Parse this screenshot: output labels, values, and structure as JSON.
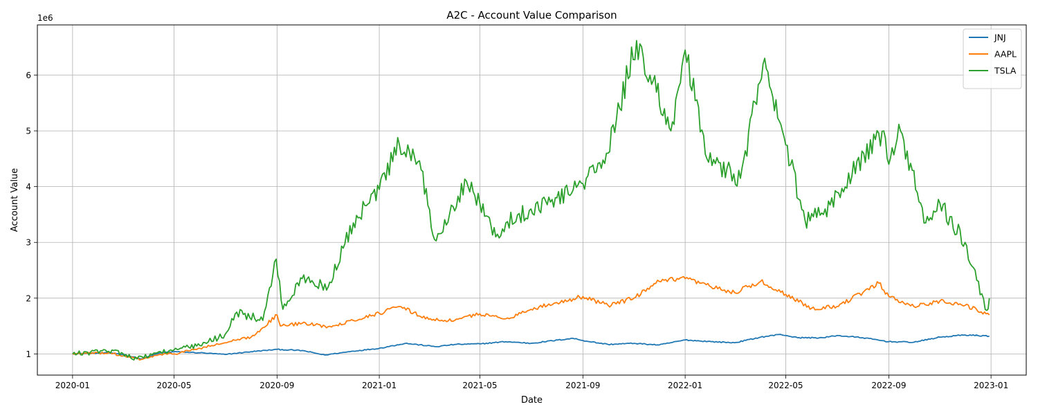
{
  "colors": {
    "JNJ": "#1f77b4",
    "AAPL": "#ff7f0e",
    "TSLA": "#2ca02c",
    "grid": "#b0b0b0"
  },
  "chart_data": {
    "type": "line",
    "title": "A2C - Account Value Comparison",
    "xlabel": "Date",
    "ylabel": "Account Value",
    "y_scale_label": "1e6",
    "xlim": [
      "2019-11-20",
      "2023-02-12"
    ],
    "ylim": [
      0.62,
      6.9
    ],
    "x_ticks": [
      "2020-01-01",
      "2020-05-01",
      "2020-09-01",
      "2021-01-01",
      "2021-05-01",
      "2021-09-01",
      "2022-01-01",
      "2022-05-01",
      "2022-09-01",
      "2023-01-01"
    ],
    "x_tick_labels": [
      "2020-01",
      "2020-05",
      "2020-09",
      "2021-01",
      "2021-05",
      "2021-09",
      "2022-01",
      "2022-05",
      "2022-09",
      "2023-01"
    ],
    "y_ticks": [
      1,
      2,
      3,
      4,
      5,
      6
    ],
    "y_tick_labels": [
      "1",
      "2",
      "3",
      "4",
      "5",
      "6"
    ],
    "grid": true,
    "legend_position": "top-right",
    "series": [
      {
        "name": "JNJ",
        "points": [
          [
            "2020-01-01",
            1.0
          ],
          [
            "2020-02-15",
            1.02
          ],
          [
            "2020-03-01",
            0.99
          ],
          [
            "2020-03-23",
            0.91
          ],
          [
            "2020-04-15",
            1.02
          ],
          [
            "2020-05-01",
            1.04
          ],
          [
            "2020-06-01",
            1.02
          ],
          [
            "2020-07-01",
            0.99
          ],
          [
            "2020-08-01",
            1.04
          ],
          [
            "2020-09-01",
            1.08
          ],
          [
            "2020-10-01",
            1.06
          ],
          [
            "2020-10-28",
            0.98
          ],
          [
            "2020-12-01",
            1.05
          ],
          [
            "2021-01-01",
            1.1
          ],
          [
            "2021-02-01",
            1.19
          ],
          [
            "2021-03-10",
            1.13
          ],
          [
            "2021-04-01",
            1.17
          ],
          [
            "2021-05-01",
            1.18
          ],
          [
            "2021-06-01",
            1.22
          ],
          [
            "2021-07-01",
            1.19
          ],
          [
            "2021-08-20",
            1.28
          ],
          [
            "2021-09-01",
            1.24
          ],
          [
            "2021-10-01",
            1.17
          ],
          [
            "2021-11-01",
            1.19
          ],
          [
            "2021-12-01",
            1.16
          ],
          [
            "2022-01-01",
            1.25
          ],
          [
            "2022-02-01",
            1.22
          ],
          [
            "2022-03-01",
            1.2
          ],
          [
            "2022-04-01",
            1.3
          ],
          [
            "2022-04-25",
            1.35
          ],
          [
            "2022-05-15",
            1.29
          ],
          [
            "2022-06-15",
            1.29
          ],
          [
            "2022-07-01",
            1.33
          ],
          [
            "2022-08-01",
            1.29
          ],
          [
            "2022-09-01",
            1.22
          ],
          [
            "2022-10-01",
            1.21
          ],
          [
            "2022-11-01",
            1.3
          ],
          [
            "2022-12-01",
            1.34
          ],
          [
            "2022-12-30",
            1.32
          ]
        ]
      },
      {
        "name": "AAPL",
        "points": [
          [
            "2020-01-01",
            1.0
          ],
          [
            "2020-02-15",
            1.02
          ],
          [
            "2020-03-01",
            0.96
          ],
          [
            "2020-03-23",
            0.9
          ],
          [
            "2020-04-15",
            0.99
          ],
          [
            "2020-05-01",
            1.0
          ],
          [
            "2020-06-01",
            1.1
          ],
          [
            "2020-07-01",
            1.2
          ],
          [
            "2020-08-01",
            1.3
          ],
          [
            "2020-08-15",
            1.47
          ],
          [
            "2020-09-01",
            1.7
          ],
          [
            "2020-09-05",
            1.5
          ],
          [
            "2020-10-01",
            1.55
          ],
          [
            "2020-11-01",
            1.49
          ],
          [
            "2020-12-01",
            1.6
          ],
          [
            "2021-01-01",
            1.73
          ],
          [
            "2021-01-25",
            1.85
          ],
          [
            "2021-03-01",
            1.62
          ],
          [
            "2021-04-01",
            1.6
          ],
          [
            "2021-05-01",
            1.72
          ],
          [
            "2021-06-01",
            1.63
          ],
          [
            "2021-07-01",
            1.8
          ],
          [
            "2021-08-01",
            1.92
          ],
          [
            "2021-09-01",
            2.03
          ],
          [
            "2021-10-01",
            1.87
          ],
          [
            "2021-11-01",
            2.0
          ],
          [
            "2021-12-01",
            2.3
          ],
          [
            "2022-01-01",
            2.35
          ],
          [
            "2022-02-01",
            2.2
          ],
          [
            "2022-03-01",
            2.1
          ],
          [
            "2022-04-01",
            2.3
          ],
          [
            "2022-05-01",
            2.07
          ],
          [
            "2022-06-01",
            1.82
          ],
          [
            "2022-07-01",
            1.85
          ],
          [
            "2022-08-01",
            2.1
          ],
          [
            "2022-08-20",
            2.27
          ],
          [
            "2022-09-01",
            2.03
          ],
          [
            "2022-10-01",
            1.85
          ],
          [
            "2022-11-01",
            1.95
          ],
          [
            "2022-12-01",
            1.87
          ],
          [
            "2022-12-30",
            1.7
          ]
        ]
      },
      {
        "name": "TSLA",
        "points": [
          [
            "2020-01-01",
            1.0
          ],
          [
            "2020-02-19",
            1.06
          ],
          [
            "2020-03-01",
            1.01
          ],
          [
            "2020-03-18",
            0.91
          ],
          [
            "2020-04-15",
            1.04
          ],
          [
            "2020-05-01",
            1.07
          ],
          [
            "2020-06-01",
            1.15
          ],
          [
            "2020-07-01",
            1.35
          ],
          [
            "2020-07-15",
            1.75
          ],
          [
            "2020-08-15",
            1.6
          ],
          [
            "2020-08-31",
            2.7
          ],
          [
            "2020-09-08",
            1.8
          ],
          [
            "2020-10-01",
            2.35
          ],
          [
            "2020-11-01",
            2.2
          ],
          [
            "2020-12-01",
            3.35
          ],
          [
            "2021-01-01",
            3.95
          ],
          [
            "2021-01-25",
            4.75
          ],
          [
            "2021-02-20",
            4.3
          ],
          [
            "2021-03-08",
            3.05
          ],
          [
            "2021-04-15",
            4.1
          ],
          [
            "2021-05-01",
            3.7
          ],
          [
            "2021-05-20",
            3.1
          ],
          [
            "2021-06-01",
            3.35
          ],
          [
            "2021-07-01",
            3.6
          ],
          [
            "2021-08-01",
            3.8
          ],
          [
            "2021-09-01",
            4.05
          ],
          [
            "2021-10-01",
            4.6
          ],
          [
            "2021-11-04",
            6.62
          ],
          [
            "2021-11-20",
            6.0
          ],
          [
            "2021-12-15",
            5.0
          ],
          [
            "2022-01-01",
            6.45
          ],
          [
            "2022-01-27",
            4.5
          ],
          [
            "2022-03-08",
            4.15
          ],
          [
            "2022-04-04",
            6.2
          ],
          [
            "2022-05-01",
            4.75
          ],
          [
            "2022-05-24",
            3.4
          ],
          [
            "2022-06-15",
            3.5
          ],
          [
            "2022-07-01",
            3.9
          ],
          [
            "2022-08-26",
            5.0
          ],
          [
            "2022-09-01",
            4.4
          ],
          [
            "2022-09-15",
            5.0
          ],
          [
            "2022-10-15",
            3.35
          ],
          [
            "2022-11-01",
            3.7
          ],
          [
            "2022-12-01",
            3.0
          ],
          [
            "2022-12-27",
            1.78
          ],
          [
            "2022-12-30",
            2.0
          ]
        ]
      }
    ]
  }
}
